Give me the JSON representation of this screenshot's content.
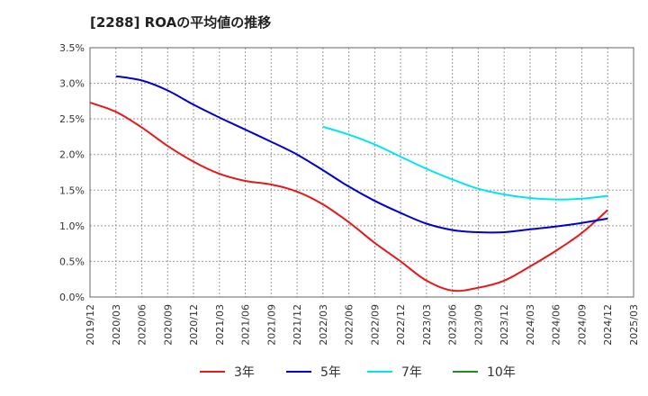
{
  "chart_data": {
    "type": "line",
    "title": "[2288]  ROAの平均値の推移",
    "xlabel": "",
    "ylabel": "",
    "ylim": [
      0,
      3.5
    ],
    "y_ticks": [
      "0.0%",
      "0.5%",
      "1.0%",
      "1.5%",
      "2.0%",
      "2.5%",
      "3.0%",
      "3.5%"
    ],
    "categories": [
      "2019/12",
      "2020/03",
      "2020/06",
      "2020/09",
      "2020/12",
      "2021/03",
      "2021/06",
      "2021/09",
      "2021/12",
      "2022/03",
      "2022/06",
      "2022/09",
      "2022/12",
      "2023/03",
      "2023/06",
      "2023/09",
      "2023/12",
      "2024/03",
      "2024/06",
      "2024/09",
      "2024/12",
      "2025/03"
    ],
    "grid": true,
    "legend_position": "bottom",
    "series": [
      {
        "name": "3年",
        "color": "#e31a1c",
        "values": [
          2.73,
          2.6,
          2.38,
          2.12,
          1.9,
          1.73,
          1.63,
          1.58,
          1.48,
          1.3,
          1.05,
          0.76,
          0.5,
          0.23,
          0.09,
          0.13,
          0.23,
          0.43,
          0.65,
          0.9,
          1.22,
          null
        ]
      },
      {
        "name": "5年",
        "color": "#0000cc",
        "values": [
          null,
          3.1,
          3.04,
          2.9,
          2.7,
          2.52,
          2.35,
          2.18,
          2.0,
          1.78,
          1.55,
          1.35,
          1.18,
          1.03,
          0.94,
          0.91,
          0.91,
          0.95,
          0.99,
          1.04,
          1.1,
          null
        ]
      },
      {
        "name": "7年",
        "color": "#00e5ee",
        "values": [
          null,
          null,
          null,
          null,
          null,
          null,
          null,
          null,
          null,
          2.39,
          2.28,
          2.14,
          1.97,
          1.8,
          1.65,
          1.52,
          1.44,
          1.39,
          1.37,
          1.38,
          1.42,
          null
        ]
      },
      {
        "name": "10年",
        "color": "#228b22",
        "values": [
          null,
          null,
          null,
          null,
          null,
          null,
          null,
          null,
          null,
          null,
          null,
          null,
          null,
          null,
          null,
          null,
          null,
          null,
          null,
          null,
          null,
          null
        ]
      }
    ]
  }
}
